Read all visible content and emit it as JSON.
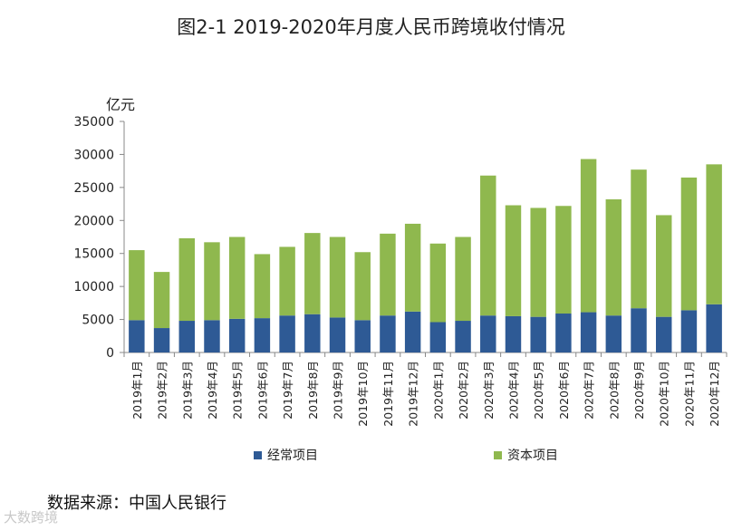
{
  "chart_data": {
    "type": "bar",
    "stacked": true,
    "title": "图2-1 2019-2020年月度人民币跨境收付情况",
    "ylabel": "亿元",
    "xlabel": "",
    "ylim": [
      0,
      35000
    ],
    "yticks": [
      0,
      5000,
      10000,
      15000,
      20000,
      25000,
      30000,
      35000
    ],
    "categories": [
      "2019年1月",
      "2019年2月",
      "2019年3月",
      "2019年4月",
      "2019年5月",
      "2019年6月",
      "2019年7月",
      "2019年8月",
      "2019年9月",
      "2019年10月",
      "2019年11月",
      "2019年12月",
      "2020年1月",
      "2020年2月",
      "2020年3月",
      "2020年4月",
      "2020年5月",
      "2020年6月",
      "2020年7月",
      "2020年8月",
      "2020年9月",
      "2020年10月",
      "2020年11月",
      "2020年12月"
    ],
    "series": [
      {
        "name": "经常项目",
        "color": "#2e5a95",
        "values": [
          4900,
          3700,
          4800,
          4900,
          5100,
          5200,
          5600,
          5800,
          5300,
          4900,
          5600,
          6200,
          4600,
          4800,
          5600,
          5500,
          5400,
          5900,
          6100,
          5600,
          6700,
          5400,
          6400,
          7300
        ]
      },
      {
        "name": "资本项目",
        "color": "#8fb84e",
        "values": [
          10600,
          8500,
          12500,
          11800,
          12400,
          9700,
          10400,
          12300,
          12200,
          10300,
          12400,
          13300,
          11900,
          12700,
          21200,
          16800,
          16500,
          16300,
          23200,
          17600,
          21000,
          15400,
          20100,
          21200
        ]
      }
    ],
    "legend_position": "bottom"
  },
  "source": "数据来源：中国人民银行",
  "watermark": "大数跨境"
}
